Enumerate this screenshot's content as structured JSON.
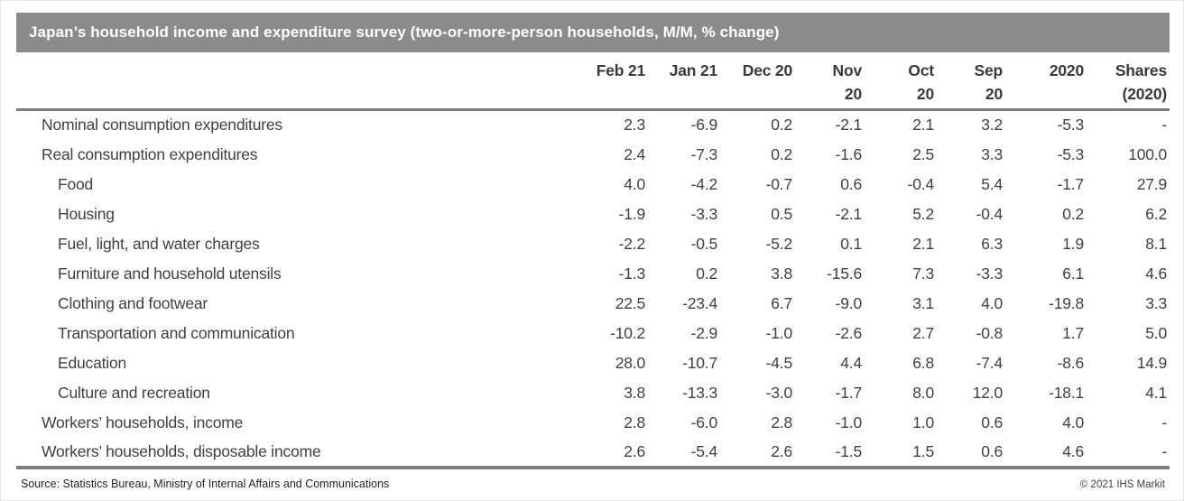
{
  "title": "Japan’s household income and expenditure survey (two-or-more-person households, M/M, % change)",
  "table": {
    "columns": [
      {
        "line1": "Feb 21",
        "line2": ""
      },
      {
        "line1": "Jan 21",
        "line2": ""
      },
      {
        "line1": "Dec 20",
        "line2": ""
      },
      {
        "line1": "Nov",
        "line2": "20"
      },
      {
        "line1": "Oct",
        "line2": "20"
      },
      {
        "line1": "Sep",
        "line2": "20"
      },
      {
        "line1": "2020",
        "line2": ""
      },
      {
        "line1": "Shares",
        "line2": "(2020)"
      }
    ],
    "rows": [
      {
        "label": "Nominal consumption expenditures",
        "indent": false,
        "values": [
          "2.3",
          "-6.9",
          "0.2",
          "-2.1",
          "2.1",
          "3.2",
          "-5.3",
          "-"
        ]
      },
      {
        "label": "Real consumption expenditures",
        "indent": false,
        "values": [
          "2.4",
          "-7.3",
          "0.2",
          "-1.6",
          "2.5",
          "3.3",
          "-5.3",
          "100.0"
        ]
      },
      {
        "label": "Food",
        "indent": true,
        "values": [
          "4.0",
          "-4.2",
          "-0.7",
          "0.6",
          "-0.4",
          "5.4",
          "-1.7",
          "27.9"
        ]
      },
      {
        "label": "Housing",
        "indent": true,
        "values": [
          "-1.9",
          "-3.3",
          "0.5",
          "-2.1",
          "5.2",
          "-0.4",
          "0.2",
          "6.2"
        ]
      },
      {
        "label": "Fuel, light, and water charges",
        "indent": true,
        "values": [
          "-2.2",
          "-0.5",
          "-5.2",
          "0.1",
          "2.1",
          "6.3",
          "1.9",
          "8.1"
        ]
      },
      {
        "label": "Furniture and household utensils",
        "indent": true,
        "values": [
          "-1.3",
          "0.2",
          "3.8",
          "-15.6",
          "7.3",
          "-3.3",
          "6.1",
          "4.6"
        ]
      },
      {
        "label": "Clothing and footwear",
        "indent": true,
        "values": [
          "22.5",
          "-23.4",
          "6.7",
          "-9.0",
          "3.1",
          "4.0",
          "-19.8",
          "3.3"
        ]
      },
      {
        "label": "Transportation and communication",
        "indent": true,
        "values": [
          "-10.2",
          "-2.9",
          "-1.0",
          "-2.6",
          "2.7",
          "-0.8",
          "1.7",
          "5.0"
        ]
      },
      {
        "label": "Education",
        "indent": true,
        "values": [
          "28.0",
          "-10.7",
          "-4.5",
          "4.4",
          "6.8",
          "-7.4",
          "-8.6",
          "14.9"
        ]
      },
      {
        "label": "Culture and recreation",
        "indent": true,
        "values": [
          "3.8",
          "-13.3",
          "-3.0",
          "-1.7",
          "8.0",
          "12.0",
          "-18.1",
          "4.1"
        ]
      },
      {
        "label": "Workers’ households, income",
        "indent": false,
        "values": [
          "2.8",
          "-6.0",
          "2.8",
          "-1.0",
          "1.0",
          "0.6",
          "4.0",
          "-"
        ]
      },
      {
        "label": "Workers’ households, disposable income",
        "indent": false,
        "values": [
          "2.6",
          "-5.4",
          "2.6",
          "-1.5",
          "1.5",
          "0.6",
          "4.6",
          "-"
        ]
      }
    ]
  },
  "footer": {
    "source": "Source: Statistics Bureau, Ministry of Internal Affairs and Communications",
    "copyright": "© 2021 IHS Markit"
  },
  "colors": {
    "title_bar_bg": "#8b8b8b",
    "title_text": "#ffffff",
    "header_text": "#3a3a3a",
    "body_text": "#404040",
    "rule": "#7d7d7d"
  }
}
